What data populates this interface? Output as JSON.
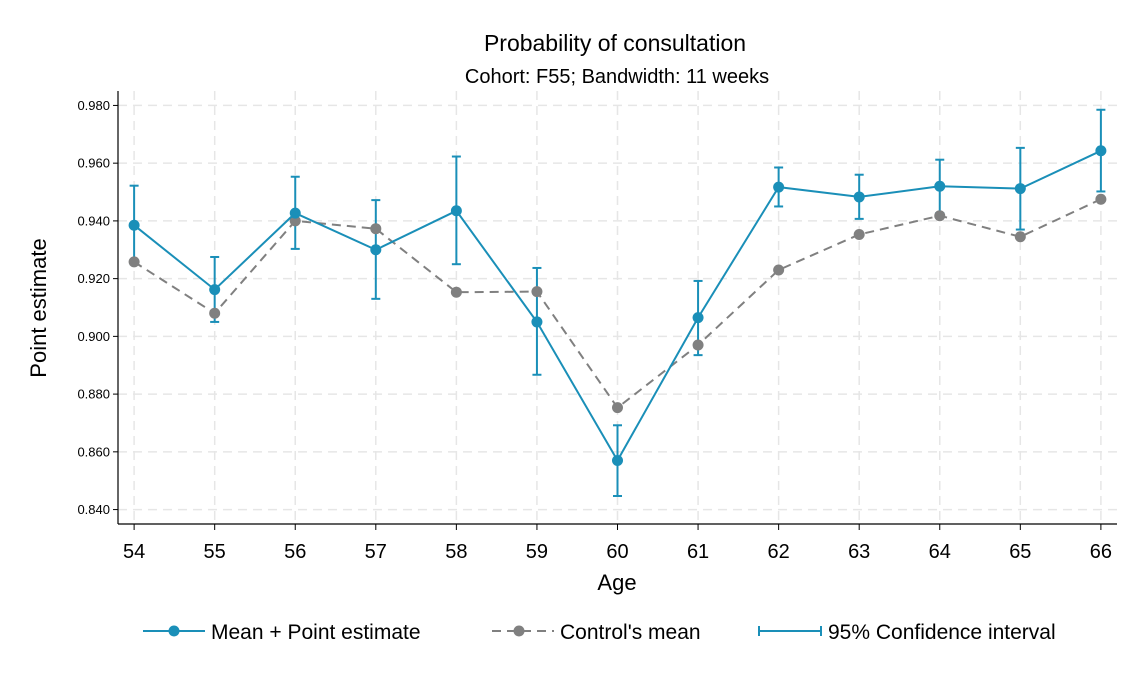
{
  "chart_data": {
    "type": "line",
    "title": "Probability of consultation",
    "subtitle": "Cohort: F55; Bandwidth: 11 weeks",
    "xlabel": "Age",
    "ylabel": "Point estimate",
    "x": [
      54,
      55,
      56,
      57,
      58,
      59,
      60,
      61,
      62,
      63,
      64,
      65,
      66
    ],
    "xlim": [
      53.8,
      66.2
    ],
    "ylim": [
      0.835,
      0.985
    ],
    "yticks": [
      0.84,
      0.86,
      0.88,
      0.9,
      0.92,
      0.94,
      0.96,
      0.98
    ],
    "ytick_labels": [
      "0.840",
      "0.860",
      "0.880",
      "0.900",
      "0.920",
      "0.940",
      "0.960",
      "0.980"
    ],
    "grid": true,
    "legend_position": "bottom",
    "series": [
      {
        "name": "Mean + Point estimate",
        "color": "#1a8fb8",
        "style": "solid",
        "values": [
          0.9385,
          0.9162,
          0.9427,
          0.93,
          0.9435,
          0.905,
          0.857,
          0.9065,
          0.9517,
          0.9483,
          0.952,
          0.9512,
          0.9643
        ]
      },
      {
        "name": "Control's mean",
        "color": "#808080",
        "style": "dashed",
        "values": [
          0.9258,
          0.908,
          0.94,
          0.9373,
          0.9153,
          0.9155,
          0.8753,
          0.897,
          0.923,
          0.9353,
          0.9418,
          0.9345,
          0.9475
        ]
      }
    ],
    "confidence_interval": {
      "name": "95% Confidence interval",
      "color": "#1a8fb8",
      "lower": [
        0.925,
        0.905,
        0.9303,
        0.913,
        0.925,
        0.8867,
        0.8447,
        0.8935,
        0.945,
        0.9407,
        0.9427,
        0.937,
        0.9502
      ],
      "upper": [
        0.9522,
        0.9275,
        0.9553,
        0.9472,
        0.9623,
        0.9237,
        0.8692,
        0.9192,
        0.9585,
        0.956,
        0.9612,
        0.9653,
        0.9785
      ]
    }
  }
}
